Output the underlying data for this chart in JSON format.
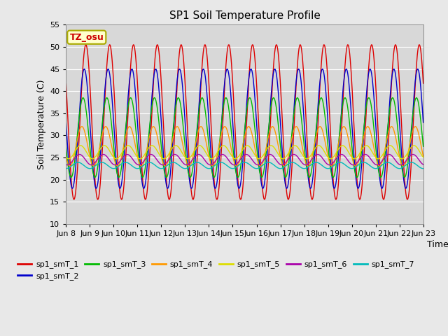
{
  "title": "SP1 Soil Temperature Profile",
  "xlabel": "Time",
  "ylabel": "Soil Temperature (C)",
  "ylim": [
    10,
    55
  ],
  "annotation": "TZ_osu",
  "xtick_labels": [
    "Jun 8",
    "Jun 9",
    "Jun 10",
    "Jun 11",
    "Jun 12",
    "Jun 13",
    "Jun 14",
    "Jun 15",
    "Jun 16",
    "Jun 17",
    "Jun 18",
    "Jun 19",
    "Jun 20",
    "Jun 21",
    "Jun 22",
    "Jun 23"
  ],
  "series": [
    {
      "label": "sp1_smT_1",
      "color": "#dd0000",
      "amplitude": 17.5,
      "mean": 33.0,
      "phase_lag": 0.0
    },
    {
      "label": "sp1_smT_2",
      "color": "#0000cc",
      "amplitude": 13.5,
      "mean": 31.5,
      "phase_lag": 0.42
    },
    {
      "label": "sp1_smT_3",
      "color": "#00bb00",
      "amplitude": 9.0,
      "mean": 29.5,
      "phase_lag": 0.75
    },
    {
      "label": "sp1_smT_4",
      "color": "#ff9900",
      "amplitude": 4.5,
      "mean": 27.5,
      "phase_lag": 1.05
    },
    {
      "label": "sp1_smT_5",
      "color": "#dddd00",
      "amplitude": 1.5,
      "mean": 26.2,
      "phase_lag": 1.4
    },
    {
      "label": "sp1_smT_6",
      "color": "#aa00aa",
      "amplitude": 1.2,
      "mean": 24.5,
      "phase_lag": 1.7
    },
    {
      "label": "sp1_smT_7",
      "color": "#00bbbb",
      "amplitude": 0.7,
      "mean": 23.2,
      "phase_lag": 2.1
    }
  ],
  "bg_color": "#d8d8d8",
  "fig_bg": "#e8e8e8",
  "grid_color": "#ffffff",
  "annotation_bg": "#ffffcc",
  "annotation_border": "#aaaa00",
  "annotation_text_color": "#cc0000",
  "yticks": [
    10,
    15,
    20,
    25,
    30,
    35,
    40,
    45,
    50,
    55
  ]
}
